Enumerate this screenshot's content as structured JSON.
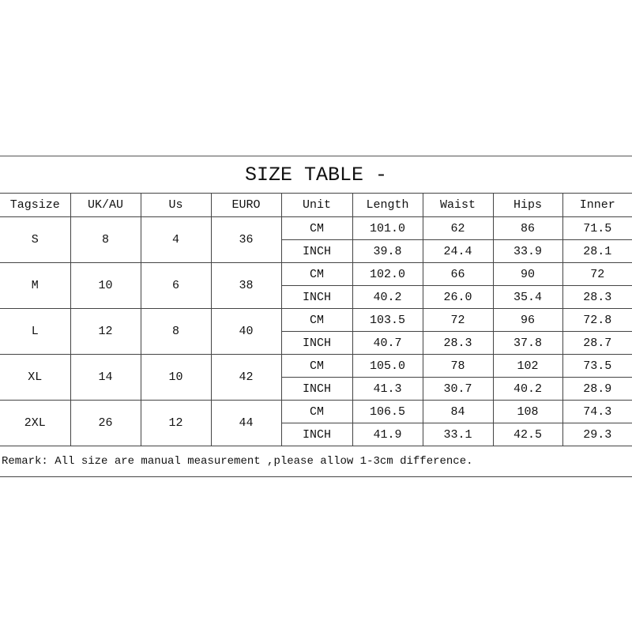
{
  "title": "SIZE TABLE -",
  "headers": [
    "Tagsize",
    "UK/AU",
    "Us",
    "EURO",
    "Unit",
    "Length",
    "Waist",
    "Hips",
    "Inner"
  ],
  "rows": [
    {
      "tag": "S",
      "uk": "8",
      "us": "4",
      "euro": "36",
      "cm": {
        "unit": "CM",
        "length": "101.0",
        "waist": "62",
        "hips": "86",
        "inner": "71.5"
      },
      "inch": {
        "unit": "INCH",
        "length": "39.8",
        "waist": "24.4",
        "hips": "33.9",
        "inner": "28.1"
      }
    },
    {
      "tag": "M",
      "uk": "10",
      "us": "6",
      "euro": "38",
      "cm": {
        "unit": "CM",
        "length": "102.0",
        "waist": "66",
        "hips": "90",
        "inner": "72"
      },
      "inch": {
        "unit": "INCH",
        "length": "40.2",
        "waist": "26.0",
        "hips": "35.4",
        "inner": "28.3"
      }
    },
    {
      "tag": "L",
      "uk": "12",
      "us": "8",
      "euro": "40",
      "cm": {
        "unit": "CM",
        "length": "103.5",
        "waist": "72",
        "hips": "96",
        "inner": "72.8"
      },
      "inch": {
        "unit": "INCH",
        "length": "40.7",
        "waist": "28.3",
        "hips": "37.8",
        "inner": "28.7"
      }
    },
    {
      "tag": "XL",
      "uk": "14",
      "us": "10",
      "euro": "42",
      "cm": {
        "unit": "CM",
        "length": "105.0",
        "waist": "78",
        "hips": "102",
        "inner": "73.5"
      },
      "inch": {
        "unit": "INCH",
        "length": "41.3",
        "waist": "30.7",
        "hips": "40.2",
        "inner": "28.9"
      }
    },
    {
      "tag": "2XL",
      "uk": "26",
      "us": "12",
      "euro": "44",
      "cm": {
        "unit": "CM",
        "length": "106.5",
        "waist": "84",
        "hips": "108",
        "inner": "74.3"
      },
      "inch": {
        "unit": "INCH",
        "length": "41.9",
        "waist": "33.1",
        "hips": "42.5",
        "inner": "29.3"
      }
    }
  ],
  "remark": "Remark: All size are manual measurement ,please allow 1-3cm difference."
}
